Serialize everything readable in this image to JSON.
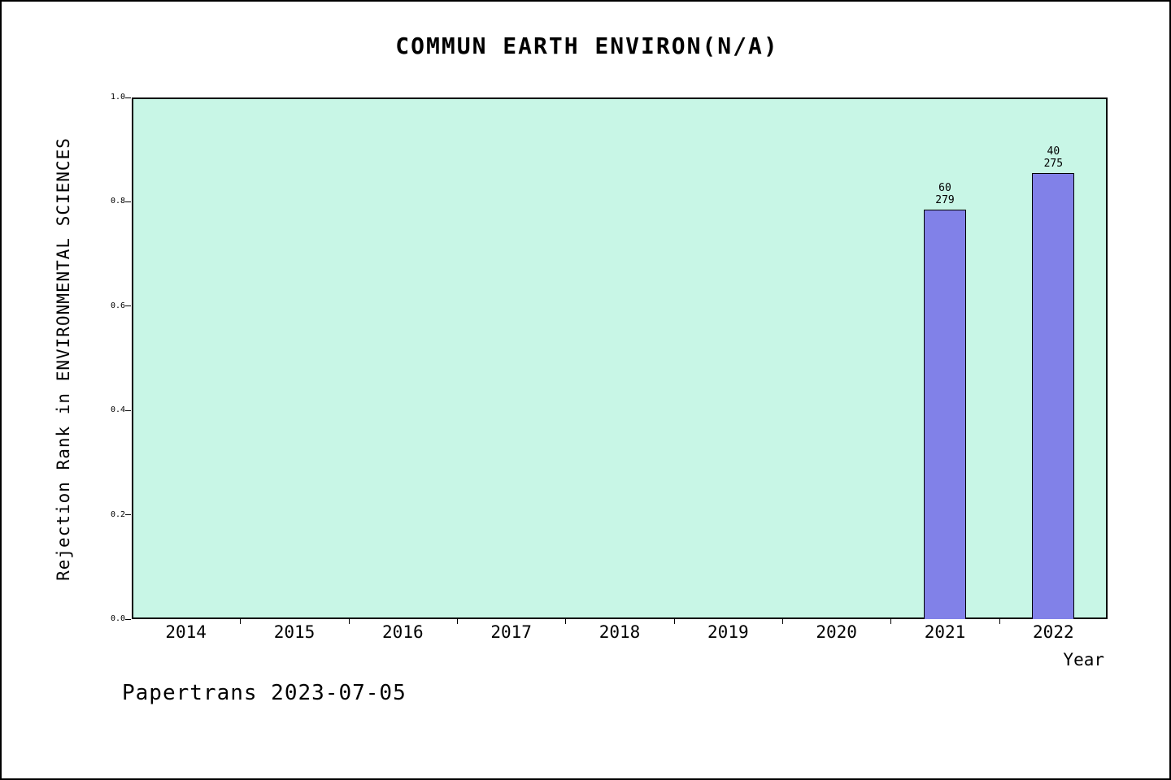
{
  "chart_data": {
    "type": "bar",
    "title": "COMMUN EARTH ENVIRON(N/A)",
    "xlabel": "Year",
    "ylabel": "Rejection Rank in ENVIRONMENTAL SCIENCES",
    "categories": [
      "2014",
      "2015",
      "2016",
      "2017",
      "2018",
      "2019",
      "2020",
      "2021",
      "2022"
    ],
    "series": [
      {
        "name": "Rejection Rank",
        "values": [
          null,
          null,
          null,
          null,
          null,
          null,
          null,
          0.785,
          0.855
        ]
      }
    ],
    "bars": [
      {
        "category": "2021",
        "value": 0.785,
        "label_top": "60",
        "label_bottom": "279"
      },
      {
        "category": "2022",
        "value": 0.855,
        "label_top": "40",
        "label_bottom": "275"
      }
    ],
    "ylim": [
      0.0,
      1.0
    ],
    "yticks": [
      "0.0",
      "0.2",
      "0.4",
      "0.6",
      "0.8",
      "1.0"
    ],
    "grid": "off",
    "legend": "none",
    "colors": {
      "bar_fill": "#8181e8",
      "bar_border": "#000000",
      "plot_background": "#c8f6e6"
    },
    "footer": "Papertrans 2023-07-05"
  }
}
